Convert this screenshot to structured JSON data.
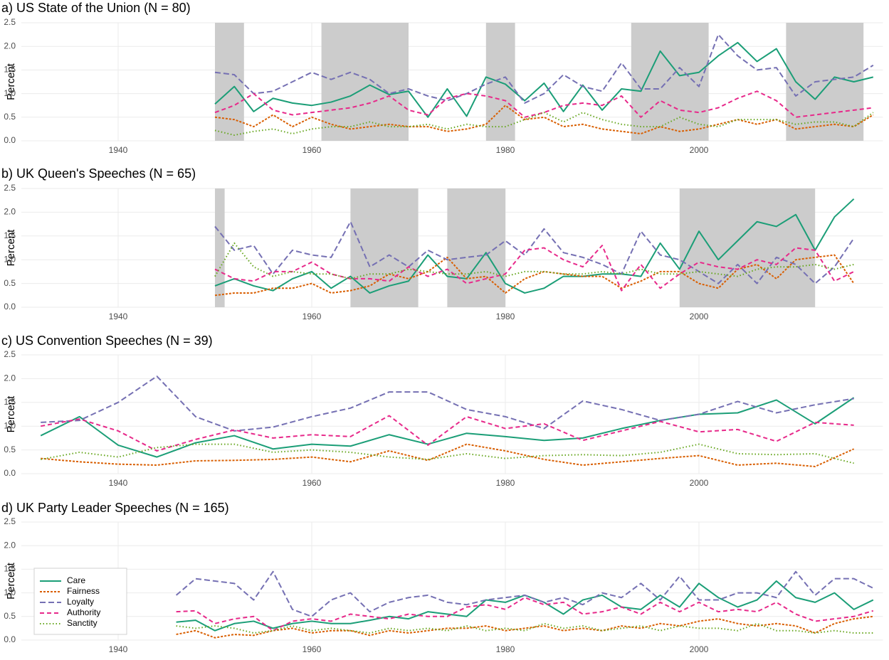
{
  "chart_data": [
    {
      "type": "line",
      "title": "a) US State of the Union (N = 80)",
      "y_label": "Percent",
      "xlim": [
        1930,
        2019
      ],
      "xticks": [
        1940,
        1960,
        1980,
        2000
      ],
      "ylim": [
        0,
        2.5
      ],
      "yticks": [
        {
          "value": 0,
          "label": "0.0"
        },
        0.5,
        {
          "value": 1,
          "label": "1.0"
        },
        1.5,
        {
          "value": 2,
          "label": "2.0"
        },
        2.5
      ],
      "grid": true,
      "shade_color": "#cccccc",
      "shaded": [
        [
          1950,
          1953
        ],
        [
          1961,
          1970
        ],
        [
          1978,
          1981
        ],
        [
          1993,
          2001
        ],
        [
          2009,
          2017
        ]
      ],
      "x": [
        1950,
        1952,
        1954,
        1956,
        1958,
        1960,
        1962,
        1964,
        1966,
        1968,
        1970,
        1972,
        1974,
        1976,
        1978,
        1980,
        1982,
        1984,
        1986,
        1988,
        1990,
        1992,
        1994,
        1996,
        1998,
        2000,
        2002,
        2004,
        2006,
        2008,
        2010,
        2012,
        2014,
        2016,
        2018
      ],
      "series": [
        {
          "color": "#1b9e77",
          "dash": "none",
          "values": [
            0.78,
            1.15,
            0.62,
            0.9,
            0.8,
            0.75,
            0.82,
            0.95,
            1.18,
            0.98,
            1.05,
            0.5,
            1.1,
            0.52,
            1.35,
            1.2,
            0.85,
            1.22,
            0.62,
            1.18,
            0.65,
            1.1,
            1.05,
            1.9,
            1.38,
            1.45,
            1.8,
            2.08,
            1.68,
            1.95,
            1.25,
            0.88,
            1.35,
            1.25,
            1.35
          ]
        },
        {
          "color": "#d95f02",
          "dash": "3,2",
          "values": [
            0.5,
            0.45,
            0.3,
            0.55,
            0.3,
            0.5,
            0.35,
            0.25,
            0.3,
            0.35,
            0.3,
            0.3,
            0.2,
            0.25,
            0.35,
            0.75,
            0.45,
            0.5,
            0.3,
            0.35,
            0.25,
            0.2,
            0.15,
            0.3,
            0.2,
            0.25,
            0.35,
            0.45,
            0.35,
            0.45,
            0.25,
            0.3,
            0.35,
            0.3,
            0.55
          ]
        },
        {
          "color": "#7570b3",
          "dash": "8,4",
          "values": [
            1.45,
            1.4,
            1.0,
            1.05,
            1.25,
            1.45,
            1.3,
            1.45,
            1.3,
            1.0,
            1.1,
            0.95,
            0.85,
            1.0,
            1.2,
            1.35,
            0.8,
            1.0,
            1.4,
            1.15,
            1.05,
            1.65,
            1.1,
            1.1,
            1.55,
            1.15,
            2.25,
            1.8,
            1.5,
            1.55,
            0.95,
            1.25,
            1.3,
            1.35,
            1.6
          ]
        },
        {
          "color": "#e7298a",
          "dash": "6,4",
          "values": [
            0.6,
            0.75,
            1.0,
            0.65,
            0.55,
            0.6,
            0.65,
            0.7,
            0.8,
            0.95,
            0.65,
            0.55,
            0.9,
            1.0,
            0.95,
            0.85,
            0.5,
            0.6,
            0.75,
            0.8,
            0.75,
            0.95,
            0.5,
            0.85,
            0.65,
            0.6,
            0.7,
            0.9,
            1.05,
            0.85,
            0.5,
            0.55,
            0.6,
            0.65,
            0.7
          ]
        },
        {
          "color": "#66a61e",
          "dash": "1.5,3",
          "values": [
            0.22,
            0.12,
            0.2,
            0.25,
            0.15,
            0.25,
            0.3,
            0.3,
            0.4,
            0.3,
            0.3,
            0.35,
            0.25,
            0.35,
            0.3,
            0.3,
            0.45,
            0.6,
            0.4,
            0.6,
            0.45,
            0.35,
            0.3,
            0.3,
            0.5,
            0.35,
            0.3,
            0.45,
            0.45,
            0.45,
            0.35,
            0.4,
            0.4,
            0.3,
            0.6
          ]
        }
      ]
    },
    {
      "type": "line",
      "title": "b) UK Queen's Speeches (N = 65)",
      "y_label": "Percent",
      "xlim": [
        1930,
        2019
      ],
      "xticks": [
        1940,
        1960,
        1980,
        2000
      ],
      "ylim": [
        0,
        2.5
      ],
      "yticks": [
        {
          "value": 0,
          "label": "0.0"
        },
        0.5,
        {
          "value": 1,
          "label": "1.0"
        },
        1.5,
        {
          "value": 2,
          "label": "2.0"
        },
        2.5
      ],
      "grid": true,
      "shade_color": "#cccccc",
      "shaded": [
        [
          1950,
          1951
        ],
        [
          1964,
          1971
        ],
        [
          1974,
          1980
        ],
        [
          1998,
          2012
        ]
      ],
      "x": [
        1950,
        1952,
        1954,
        1956,
        1958,
        1960,
        1962,
        1964,
        1966,
        1968,
        1970,
        1972,
        1974,
        1976,
        1978,
        1980,
        1982,
        1984,
        1986,
        1988,
        1990,
        1992,
        1994,
        1996,
        1998,
        2000,
        2002,
        2004,
        2006,
        2008,
        2010,
        2012,
        2014,
        2016
      ],
      "series": [
        {
          "color": "#1b9e77",
          "dash": "none",
          "values": [
            0.45,
            0.6,
            0.45,
            0.35,
            0.6,
            0.75,
            0.4,
            0.65,
            0.3,
            0.45,
            0.55,
            1.1,
            0.65,
            0.6,
            1.15,
            0.5,
            0.3,
            0.4,
            0.65,
            0.65,
            0.7,
            0.7,
            0.65,
            1.35,
            0.8,
            1.6,
            1.0,
            1.4,
            1.8,
            1.7,
            1.95,
            1.2,
            1.9,
            2.28
          ]
        },
        {
          "color": "#d95f02",
          "dash": "3,2",
          "values": [
            0.25,
            0.3,
            0.3,
            0.4,
            0.4,
            0.5,
            0.3,
            0.35,
            0.45,
            0.7,
            0.6,
            0.75,
            1.05,
            0.6,
            0.65,
            0.3,
            0.6,
            0.75,
            0.7,
            0.65,
            0.65,
            0.4,
            0.55,
            0.75,
            0.75,
            0.5,
            0.4,
            0.8,
            0.9,
            0.6,
            1.0,
            1.05,
            1.1,
            0.5
          ]
        },
        {
          "color": "#7570b3",
          "dash": "8,4",
          "values": [
            1.7,
            1.2,
            1.3,
            0.7,
            1.2,
            1.1,
            1.05,
            1.8,
            0.85,
            1.1,
            0.85,
            1.2,
            1.0,
            1.05,
            1.1,
            1.4,
            1.1,
            1.65,
            1.15,
            1.05,
            0.9,
            0.7,
            1.6,
            1.1,
            1.0,
            0.75,
            0.5,
            0.9,
            0.5,
            1.05,
            0.9,
            0.5,
            0.85,
            1.45
          ]
        },
        {
          "color": "#e7298a",
          "dash": "6,4",
          "values": [
            0.8,
            0.6,
            0.55,
            0.75,
            0.75,
            0.95,
            0.7,
            0.6,
            0.6,
            0.55,
            0.85,
            0.65,
            0.8,
            0.5,
            0.6,
            0.7,
            1.2,
            1.25,
            1.0,
            0.85,
            1.3,
            0.35,
            0.9,
            0.4,
            0.7,
            0.95,
            0.85,
            0.8,
            1.0,
            0.9,
            1.25,
            1.2,
            0.55,
            0.75
          ]
        },
        {
          "color": "#66a61e",
          "dash": "1.5,3",
          "values": [
            0.65,
            1.35,
            0.85,
            0.65,
            0.75,
            0.7,
            0.7,
            0.6,
            0.7,
            0.7,
            0.8,
            0.75,
            0.7,
            0.7,
            0.75,
            0.65,
            0.75,
            0.75,
            0.7,
            0.7,
            0.75,
            0.7,
            0.8,
            0.7,
            0.7,
            0.75,
            0.7,
            0.65,
            0.8,
            0.85,
            0.85,
            0.9,
            0.8,
            0.9
          ]
        }
      ]
    },
    {
      "type": "line",
      "title": "c) US Convention Speeches (N = 39)",
      "y_label": "Percent",
      "xlim": [
        1930,
        2019
      ],
      "xticks": [
        1940,
        1960,
        1980,
        2000
      ],
      "ylim": [
        0,
        2.5
      ],
      "yticks": [
        {
          "value": 0,
          "label": "0.0"
        },
        0.5,
        {
          "value": 1,
          "label": "1.0"
        },
        1.5,
        {
          "value": 2,
          "label": "2.0"
        },
        2.5
      ],
      "grid": true,
      "x": [
        1932,
        1936,
        1940,
        1944,
        1948,
        1952,
        1956,
        1960,
        1964,
        1968,
        1972,
        1976,
        1980,
        1984,
        1988,
        1992,
        1996,
        2000,
        2004,
        2008,
        2012,
        2016
      ],
      "series": [
        {
          "color": "#1b9e77",
          "dash": "none",
          "values": [
            0.8,
            1.2,
            0.6,
            0.35,
            0.65,
            0.8,
            0.52,
            0.62,
            0.58,
            0.82,
            0.62,
            0.85,
            0.78,
            0.7,
            0.75,
            0.95,
            1.12,
            1.25,
            1.28,
            1.55,
            1.05,
            1.6
          ]
        },
        {
          "color": "#d95f02",
          "dash": "3,2",
          "values": [
            0.32,
            0.25,
            0.2,
            0.18,
            0.27,
            0.28,
            0.3,
            0.35,
            0.25,
            0.48,
            0.28,
            0.62,
            0.48,
            0.3,
            0.18,
            0.25,
            0.32,
            0.38,
            0.18,
            0.22,
            0.15,
            0.52
          ]
        },
        {
          "color": "#7570b3",
          "dash": "8,4",
          "values": [
            1.08,
            1.12,
            1.5,
            2.05,
            1.2,
            0.9,
            0.98,
            1.2,
            1.38,
            1.72,
            1.72,
            1.35,
            1.2,
            0.95,
            1.53,
            1.35,
            1.12,
            1.25,
            1.52,
            1.28,
            1.45,
            1.58
          ]
        },
        {
          "color": "#e7298a",
          "dash": "6,4",
          "values": [
            1.0,
            1.15,
            0.9,
            0.48,
            0.72,
            0.92,
            0.75,
            0.82,
            0.78,
            1.22,
            0.6,
            1.2,
            0.95,
            1.05,
            0.7,
            0.9,
            1.1,
            0.88,
            0.93,
            0.68,
            1.08,
            1.02
          ]
        },
        {
          "color": "#66a61e",
          "dash": "1.5,3",
          "values": [
            0.3,
            0.45,
            0.35,
            0.55,
            0.62,
            0.62,
            0.45,
            0.5,
            0.45,
            0.35,
            0.3,
            0.42,
            0.32,
            0.38,
            0.4,
            0.38,
            0.45,
            0.62,
            0.42,
            0.4,
            0.42,
            0.22
          ]
        }
      ]
    },
    {
      "type": "line",
      "title": "d) UK Party Leader Speeches (N = 165)",
      "y_label": "Percent",
      "xlim": [
        1930,
        2019
      ],
      "xticks": [
        1940,
        1960,
        1980,
        2000
      ],
      "ylim": [
        0,
        2.5
      ],
      "yticks": [
        {
          "value": 0,
          "label": "0.0"
        },
        0.5,
        {
          "value": 1,
          "label": "1.0"
        },
        1.5,
        {
          "value": 2,
          "label": "2.0"
        },
        2.5
      ],
      "grid": true,
      "legend": "bottom-left",
      "x": [
        1946,
        1948,
        1950,
        1952,
        1954,
        1956,
        1958,
        1960,
        1962,
        1964,
        1966,
        1968,
        1970,
        1972,
        1974,
        1976,
        1978,
        1980,
        1982,
        1984,
        1986,
        1988,
        1990,
        1992,
        1994,
        1996,
        1998,
        2000,
        2002,
        2004,
        2006,
        2008,
        2010,
        2012,
        2014,
        2016,
        2018
      ],
      "series": [
        {
          "name": "Care",
          "color": "#1b9e77",
          "dash": "none",
          "values": [
            0.38,
            0.42,
            0.2,
            0.35,
            0.4,
            0.25,
            0.35,
            0.4,
            0.35,
            0.35,
            0.42,
            0.5,
            0.45,
            0.6,
            0.55,
            0.5,
            0.85,
            0.8,
            0.95,
            0.8,
            0.55,
            0.85,
            0.95,
            0.7,
            0.65,
            0.95,
            0.7,
            1.2,
            0.9,
            0.7,
            0.85,
            1.25,
            0.9,
            0.8,
            1.0,
            0.65,
            0.85
          ]
        },
        {
          "name": "Fairness",
          "color": "#d95f02",
          "dash": "3,2",
          "values": [
            0.12,
            0.2,
            0.05,
            0.12,
            0.1,
            0.2,
            0.25,
            0.15,
            0.2,
            0.2,
            0.1,
            0.2,
            0.15,
            0.2,
            0.25,
            0.25,
            0.3,
            0.2,
            0.25,
            0.3,
            0.2,
            0.25,
            0.2,
            0.3,
            0.25,
            0.35,
            0.3,
            0.4,
            0.45,
            0.35,
            0.3,
            0.35,
            0.3,
            0.15,
            0.35,
            0.45,
            0.5
          ]
        },
        {
          "name": "Loyalty",
          "color": "#7570b3",
          "dash": "8,4",
          "values": [
            0.95,
            1.3,
            1.25,
            1.2,
            0.85,
            1.45,
            0.65,
            0.5,
            0.85,
            1.0,
            0.6,
            0.8,
            0.9,
            0.95,
            0.8,
            0.75,
            0.85,
            0.9,
            0.95,
            0.8,
            0.9,
            0.75,
            1.0,
            0.9,
            1.2,
            0.85,
            1.35,
            0.85,
            0.85,
            1.0,
            1.0,
            0.9,
            1.45,
            0.95,
            1.3,
            1.3,
            1.1
          ]
        },
        {
          "name": "Authority",
          "color": "#e7298a",
          "dash": "6,4",
          "values": [
            0.6,
            0.62,
            0.35,
            0.45,
            0.5,
            0.2,
            0.4,
            0.45,
            0.4,
            0.55,
            0.5,
            0.45,
            0.55,
            0.5,
            0.5,
            0.7,
            0.75,
            0.65,
            0.9,
            0.75,
            0.8,
            0.55,
            0.6,
            0.7,
            0.55,
            0.8,
            0.6,
            0.8,
            0.6,
            0.65,
            0.6,
            0.8,
            0.55,
            0.4,
            0.45,
            0.5,
            0.62
          ]
        },
        {
          "name": "Sanctity",
          "color": "#66a61e",
          "dash": "1.5,3",
          "values": [
            0.3,
            0.25,
            0.3,
            0.25,
            0.15,
            0.2,
            0.3,
            0.2,
            0.25,
            0.2,
            0.15,
            0.25,
            0.2,
            0.25,
            0.2,
            0.3,
            0.2,
            0.25,
            0.2,
            0.35,
            0.25,
            0.3,
            0.2,
            0.25,
            0.3,
            0.2,
            0.3,
            0.25,
            0.25,
            0.2,
            0.35,
            0.2,
            0.2,
            0.15,
            0.2,
            0.15,
            0.15
          ]
        }
      ]
    }
  ]
}
